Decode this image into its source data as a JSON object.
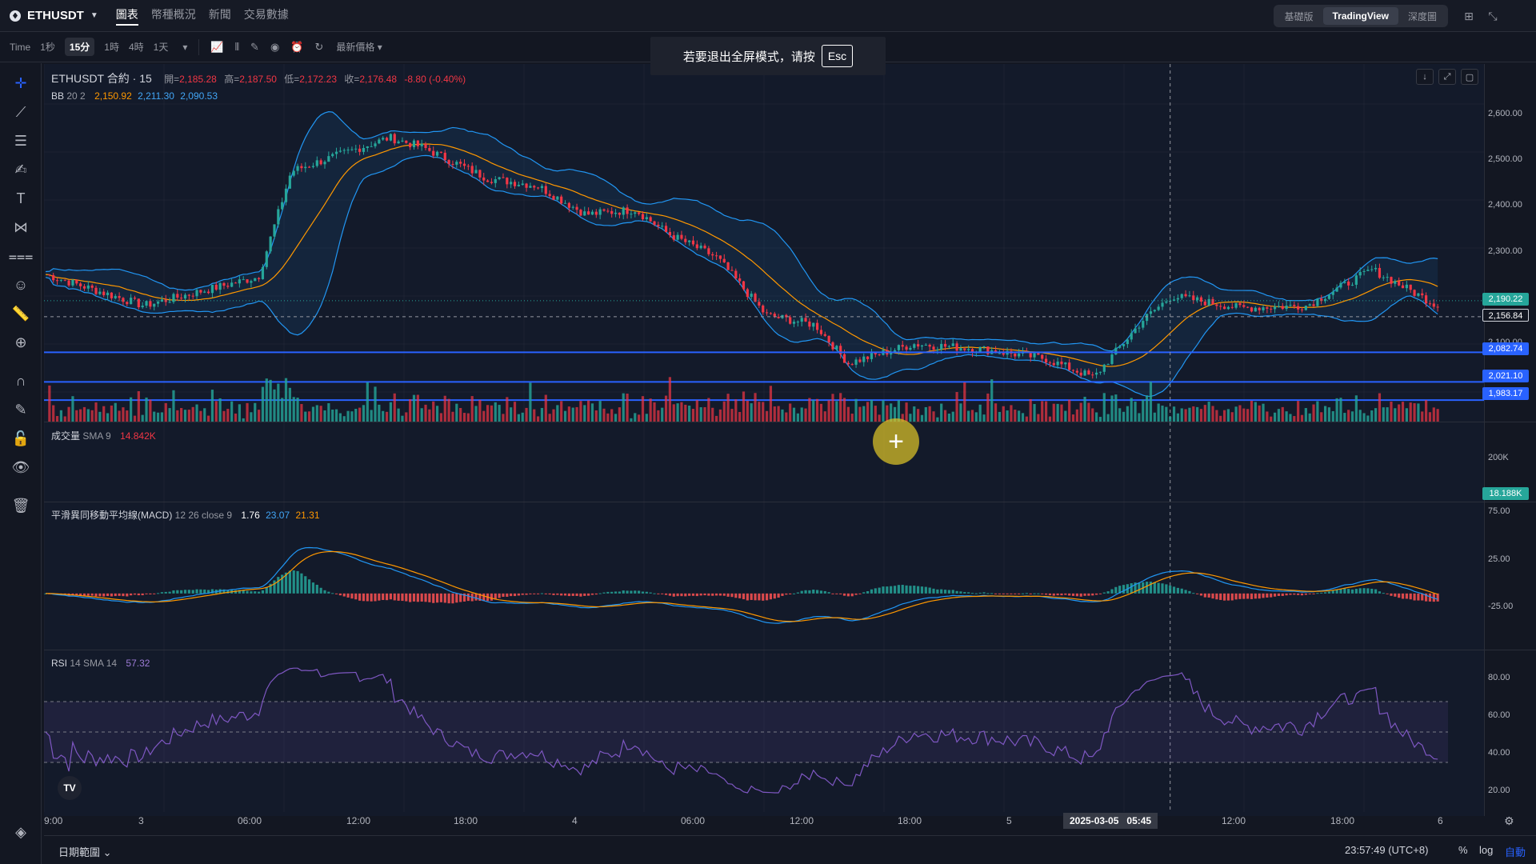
{
  "header": {
    "symbol": "ETHUSDT",
    "nav_tabs": [
      {
        "label": "圖表",
        "active": true
      },
      {
        "label": "幣種概況",
        "active": false
      },
      {
        "label": "新聞",
        "active": false
      },
      {
        "label": "交易數據",
        "active": false
      }
    ],
    "view_modes": [
      {
        "label": "基礎版",
        "active": false
      },
      {
        "label": "TradingView",
        "active": true
      },
      {
        "label": "深度圖",
        "active": false
      }
    ]
  },
  "toolbar": {
    "intervals": [
      {
        "label": "Time",
        "active": false
      },
      {
        "label": "1秒",
        "active": false
      },
      {
        "label": "15分",
        "active": true
      },
      {
        "label": "1時",
        "active": false
      },
      {
        "label": "4時",
        "active": false
      },
      {
        "label": "1天",
        "active": false
      }
    ],
    "price_type": "最新價格"
  },
  "toast": {
    "text": "若要退出全屏模式，请按",
    "key": "Esc"
  },
  "legend": {
    "title": "ETHUSDT 合約 · 15",
    "o_label": "開=",
    "o_value": "2,185.28",
    "h_label": "高=",
    "h_value": "2,187.50",
    "l_label": "低=",
    "l_value": "2,172.23",
    "c_label": "收=",
    "c_value": "2,176.48",
    "change": "-8.80 (-0.40%)",
    "bb_name": "BB",
    "bb_params": "20 2",
    "bb_basis": "2,150.92",
    "bb_upper": "2,211.30",
    "bb_lower": "2,090.53",
    "vol_name": "成交量",
    "vol_params": "SMA 9",
    "vol_value": "14.842K",
    "macd_name": "平滑異同移動平均線(MACD)",
    "macd_params": "12 26 close 9",
    "macd_hist": "1.76",
    "macd_line": "23.07",
    "macd_signal": "21.31",
    "rsi_name": "RSI",
    "rsi_params": "14 SMA 14",
    "rsi_value": "57.32"
  },
  "price_axis": {
    "main_ticks": [
      "2,600.00",
      "2,500.00",
      "2,400.00",
      "2,300.00",
      "2,100.00"
    ],
    "volume_tick": "200K",
    "macd_ticks": [
      "75.00",
      "25.00",
      "-25.00"
    ],
    "rsi_ticks": [
      "80.00",
      "60.00",
      "40.00",
      "20.00"
    ],
    "tags": [
      {
        "value": "2,190.22",
        "color": "#26a69a"
      },
      {
        "value": "2,156.84",
        "color": "#131722"
      },
      {
        "value": "2,082.74",
        "color": "#2962ff"
      },
      {
        "value": "2,021.10",
        "color": "#2962ff"
      },
      {
        "value": "1,983.17",
        "color": "#2962ff"
      }
    ],
    "volume_tag": "18.188K"
  },
  "time_axis": {
    "labels": [
      "9:00",
      "3",
      "06:00",
      "12:00",
      "18:00",
      "4",
      "06:00",
      "12:00",
      "18:00",
      "5",
      "12:00",
      "18:00",
      "6"
    ],
    "crosshair_date": "2025-03-05",
    "crosshair_time": "05:45"
  },
  "horizontal_lines": [
    2082.74,
    2021.1,
    1983.17
  ],
  "bottom": {
    "date_range": "日期範圍",
    "clock": "23:57:49 (UTC+8)",
    "percent": "%",
    "log": "log",
    "auto": "自動"
  },
  "colors": {
    "up": "#26a69a",
    "down": "#f23645",
    "bb_band": "#2196f3",
    "bb_basis": "#ff9800",
    "rsi": "#7e57c2",
    "hline": "#2962ff"
  },
  "chart_data": {
    "type": "candlestick",
    "x_start": "2025-03-02 09:00",
    "interval": "15m",
    "price_range": [
      1950,
      2650
    ],
    "close_path": [
      {
        "t": "2025-03-02 09:00",
        "price": 2245
      },
      {
        "t": "2025-03-02 15:00",
        "price": 2180
      },
      {
        "t": "2025-03-02 22:00",
        "price": 2240
      },
      {
        "t": "2025-03-03 00:00",
        "price": 2460
      },
      {
        "t": "2025-03-03 06:00",
        "price": 2530
      },
      {
        "t": "2025-03-03 08:00",
        "price": 2510
      },
      {
        "t": "2025-03-03 12:00",
        "price": 2445
      },
      {
        "t": "2025-03-03 15:00",
        "price": 2430
      },
      {
        "t": "2025-03-03 18:00",
        "price": 2370
      },
      {
        "t": "2025-03-03 21:00",
        "price": 2380
      },
      {
        "t": "2025-03-03 23:00",
        "price": 2330
      },
      {
        "t": "2025-03-04 02:00",
        "price": 2280
      },
      {
        "t": "2025-03-04 05:00",
        "price": 2160
      },
      {
        "t": "2025-03-04 08:00",
        "price": 2140
      },
      {
        "t": "2025-03-04 10:00",
        "price": 2060
      },
      {
        "t": "2025-03-04 14:00",
        "price": 2100
      },
      {
        "t": "2025-03-04 18:00",
        "price": 2090
      },
      {
        "t": "2025-03-04 22:00",
        "price": 2070
      },
      {
        "t": "2025-03-05 01:00",
        "price": 2030
      },
      {
        "t": "2025-03-05 04:00",
        "price": 2150
      },
      {
        "t": "2025-03-05 05:45",
        "price": 2200
      },
      {
        "t": "2025-03-05 10:00",
        "price": 2175
      },
      {
        "t": "2025-03-05 14:00",
        "price": 2180
      },
      {
        "t": "2025-03-05 18:00",
        "price": 2255
      },
      {
        "t": "2025-03-05 22:00",
        "price": 2180
      }
    ],
    "rsi_range": [
      0,
      100
    ],
    "rsi_bands": [
      30,
      50,
      70
    ],
    "macd_range": [
      -50,
      80
    ]
  }
}
